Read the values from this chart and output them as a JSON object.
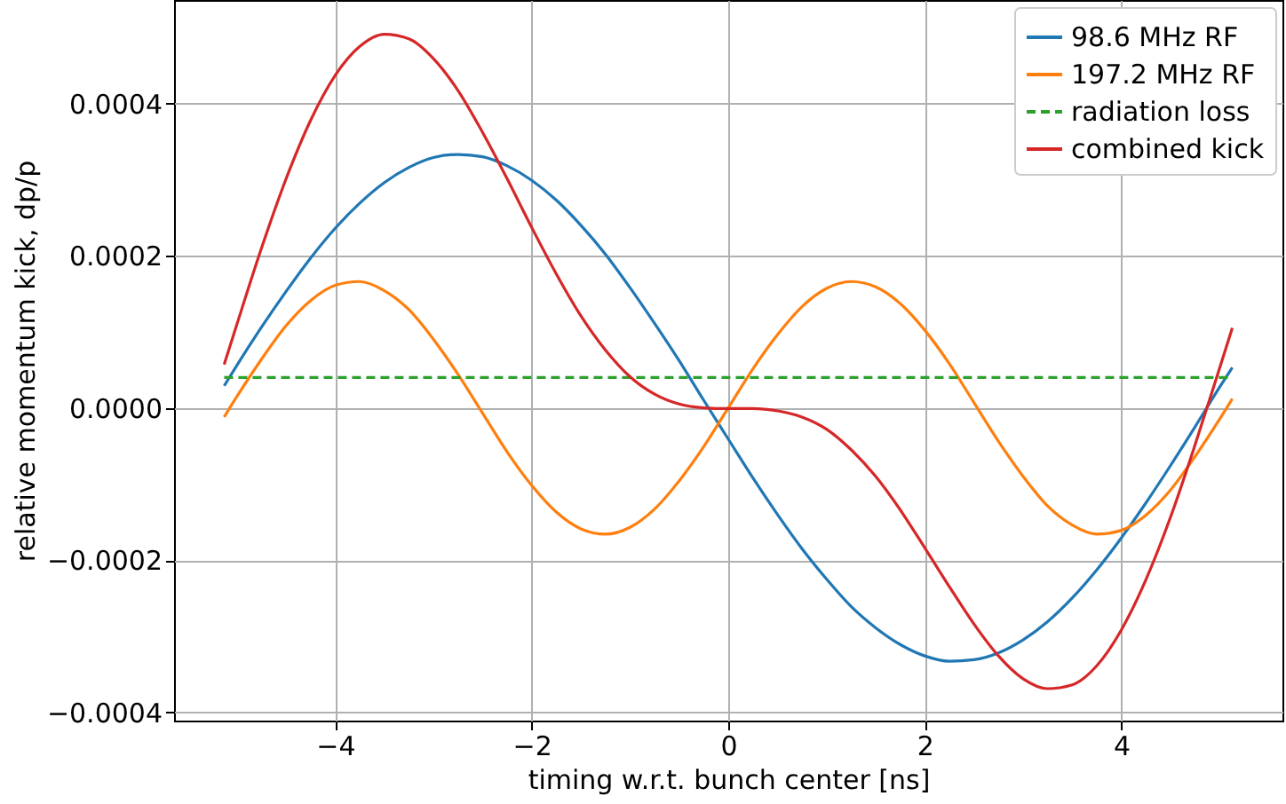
{
  "chart_data": {
    "type": "line",
    "xlabel": "timing w.r.t. bunch center [ns]",
    "ylabel": "relative momentum kick, dp/p",
    "x": [
      -5.13,
      -5,
      -4.75,
      -4.5,
      -4.25,
      -4,
      -3.75,
      -3.5,
      -3.25,
      -3,
      -2.75,
      -2.5,
      -2.25,
      -2,
      -1.75,
      -1.5,
      -1.25,
      -1,
      -0.75,
      -0.5,
      -0.25,
      0,
      0.25,
      0.5,
      0.75,
      1,
      1.25,
      1.5,
      1.75,
      2,
      2.25,
      2.5,
      2.75,
      3,
      3.25,
      3.5,
      3.75,
      4,
      4.25,
      4.5,
      4.75,
      5,
      5.13
    ],
    "series": [
      {
        "name": "98.6 MHz RF",
        "color": "#1f77b4",
        "values": [
          2.9e-05,
          5.6e-05,
          0.000106,
          0.000153,
          0.000197,
          0.000236,
          0.000269,
          0.000296,
          0.000316,
          0.000329,
          0.000333,
          0.00033,
          0.000318,
          0.000299,
          0.000273,
          0.00024,
          0.000202,
          0.000158,
          0.000111,
          6.2e-05,
          1e-05,
          -4.1e-05,
          -9.2e-05,
          -0.00014,
          -0.000185,
          -0.000225,
          -0.000261,
          -0.000289,
          -0.000311,
          -0.000326,
          -0.000333,
          -0.000331,
          -0.000322,
          -0.000305,
          -0.000281,
          -0.00025,
          -0.000213,
          -0.000171,
          -0.000125,
          -7.6e-05,
          -2.5e-05,
          2.7e-05,
          5.3e-05
        ]
      },
      {
        "name": "197.2 MHz RF",
        "color": "#ff7f0e",
        "values": [
          -1.2e-05,
          1.5e-05,
          6.4e-05,
          0.000108,
          0.000141,
          0.000161,
          0.000166,
          0.000154,
          0.000129,
          9e-05,
          4.4e-05,
          -7e-06,
          -5.8e-05,
          -0.000102,
          -0.000137,
          -0.000159,
          -0.000166,
          -0.000157,
          -0.000133,
          -9.6e-05,
          -5.1e-05,
          0,
          5.1e-05,
          9.6e-05,
          0.000133,
          0.000157,
          0.000166,
          0.000159,
          0.000137,
          0.000102,
          5.8e-05,
          7e-06,
          -4.4e-05,
          -9e-05,
          -0.000129,
          -0.000154,
          -0.000166,
          -0.000161,
          -0.000141,
          -0.000108,
          -6.4e-05,
          -1.5e-05,
          1.2e-05
        ]
      },
      {
        "name": "radiation loss",
        "color": "#2ca02c",
        "line_style": "dashed",
        "x": [
          -5.13,
          5.13
        ],
        "values": [
          4e-05,
          4e-05
        ]
      },
      {
        "name": "combined kick",
        "color": "#d62728",
        "values": [
          5.7e-05,
          0.00011,
          0.00021,
          0.000301,
          0.000378,
          0.000437,
          0.000475,
          0.000491,
          0.000485,
          0.000459,
          0.000417,
          0.000362,
          0.000301,
          0.000237,
          0.000176,
          0.000121,
          7.6e-05,
          4.1e-05,
          1.8e-05,
          5e-06,
          0,
          -1e-06,
          -1e-06,
          -4e-06,
          -1.2e-05,
          -2.8e-05,
          -5.5e-05,
          -9e-05,
          -0.000134,
          -0.000184,
          -0.000235,
          -0.000284,
          -0.000326,
          -0.000356,
          -0.000369,
          -0.000364,
          -0.000339,
          -0.000292,
          -0.000226,
          -0.000144,
          -4.9e-05,
          5.2e-05,
          0.000105
        ]
      }
    ],
    "line_style": "solid",
    "xlim": [
      -5.64,
      5.64
    ],
    "ylim": [
      -0.000411,
      0.000536
    ],
    "xticks": [
      {
        "value": -4,
        "label": "−4"
      },
      {
        "value": -2,
        "label": "−2"
      },
      0,
      2,
      4
    ],
    "yticks": [
      {
        "value": -0.0004,
        "label": "−0.0004"
      },
      {
        "value": -0.0002,
        "label": "−0.0002"
      },
      {
        "value": 0,
        "label": "0.0000"
      },
      {
        "value": 0.0002,
        "label": "0.0002"
      },
      {
        "value": 0.0004,
        "label": "0.0004"
      }
    ],
    "grid": true,
    "legend": "top right"
  }
}
